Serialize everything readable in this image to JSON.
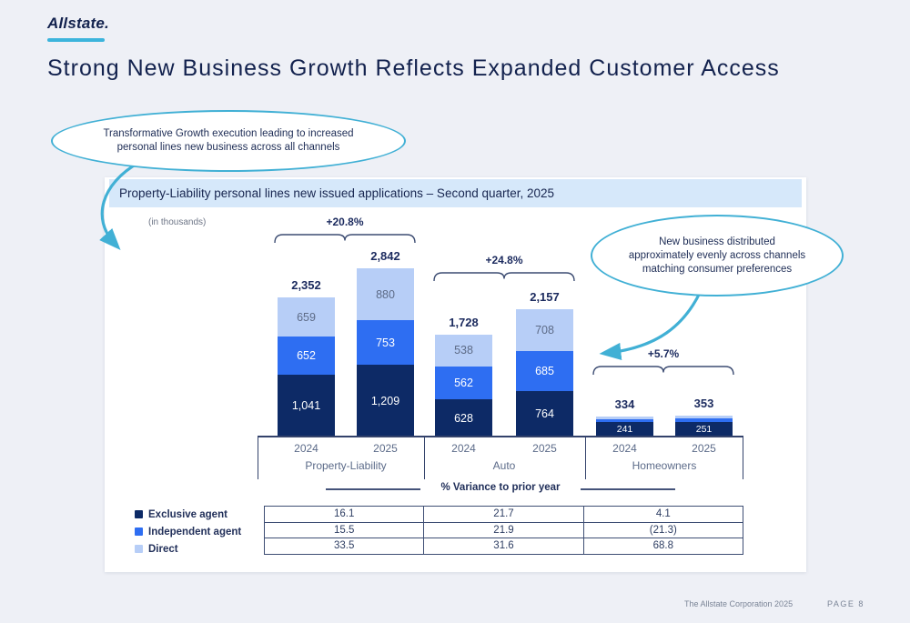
{
  "logo": {
    "text": "Allstate.",
    "underline_color": "#3cb4dc"
  },
  "title": "Strong New Business Growth Reflects Expanded Customer Access",
  "callout_left": {
    "lines": [
      "Transformative Growth execution leading to increased",
      "personal lines new business across all channels"
    ]
  },
  "callout_right": {
    "lines": [
      "New business distributed",
      "approximately evenly across channels",
      "matching consumer preferences"
    ]
  },
  "panel": {
    "header": "Property-Liability personal lines new issued applications – Second quarter, 2025",
    "units_note": "(in thousands)"
  },
  "chart_data": {
    "type": "bar",
    "stacked": true,
    "units": "thousands",
    "ylabel": "New issued applications (in thousands)",
    "colors": {
      "Exclusive agent": "#0d2a66",
      "Independent agent": "#2e6ef2",
      "Direct": "#b7cef7"
    },
    "groups": [
      {
        "name": "Property-Liability",
        "growth": "+20.8%",
        "bars": [
          {
            "year": "2024",
            "total": 2352,
            "total_label": "2,352",
            "segments": [
              {
                "channel": "Exclusive agent",
                "value": 1041,
                "label": "1,041"
              },
              {
                "channel": "Independent agent",
                "value": 652,
                "label": "652"
              },
              {
                "channel": "Direct",
                "value": 659,
                "label": "659"
              }
            ]
          },
          {
            "year": "2025",
            "total": 2842,
            "total_label": "2,842",
            "segments": [
              {
                "channel": "Exclusive agent",
                "value": 1209,
                "label": "1,209"
              },
              {
                "channel": "Independent agent",
                "value": 753,
                "label": "753"
              },
              {
                "channel": "Direct",
                "value": 880,
                "label": "880"
              }
            ]
          }
        ]
      },
      {
        "name": "Auto",
        "growth": "+24.8%",
        "bars": [
          {
            "year": "2024",
            "total": 1728,
            "total_label": "1,728",
            "segments": [
              {
                "channel": "Exclusive agent",
                "value": 628,
                "label": "628"
              },
              {
                "channel": "Independent agent",
                "value": 562,
                "label": "562"
              },
              {
                "channel": "Direct",
                "value": 538,
                "label": "538"
              }
            ]
          },
          {
            "year": "2025",
            "total": 2157,
            "total_label": "2,157",
            "segments": [
              {
                "channel": "Exclusive agent",
                "value": 764,
                "label": "764"
              },
              {
                "channel": "Independent agent",
                "value": 685,
                "label": "685"
              },
              {
                "channel": "Direct",
                "value": 708,
                "label": "708"
              }
            ]
          }
        ]
      },
      {
        "name": "Homeowners",
        "growth": "+5.7%",
        "bars": [
          {
            "year": "2024",
            "total": 334,
            "total_label": "334",
            "segments": [
              {
                "channel": "Exclusive agent",
                "value": 241,
                "label": "241"
              },
              {
                "channel": "Independent agent",
                "value": null,
                "label": ""
              },
              {
                "channel": "Direct",
                "value": null,
                "label": ""
              }
            ]
          },
          {
            "year": "2025",
            "total": 353,
            "total_label": "353",
            "segments": [
              {
                "channel": "Exclusive agent",
                "value": 251,
                "label": "251"
              },
              {
                "channel": "Independent agent",
                "value": null,
                "label": ""
              },
              {
                "channel": "Direct",
                "value": null,
                "label": ""
              }
            ]
          }
        ]
      }
    ]
  },
  "legend": [
    {
      "label": "Exclusive agent",
      "color": "#0d2a66"
    },
    {
      "label": "Independent agent",
      "color": "#2e6ef2"
    },
    {
      "label": "Direct",
      "color": "#b7cef7"
    }
  ],
  "variance_table": {
    "title": "% Variance to prior year",
    "columns": [
      "Property-Liability",
      "Auto",
      "Homeowners"
    ],
    "rows": [
      {
        "label": "Exclusive agent",
        "values": [
          "16.1",
          "21.7",
          "4.1"
        ]
      },
      {
        "label": "Independent agent",
        "values": [
          "15.5",
          "21.9",
          "(21.3)"
        ]
      },
      {
        "label": "Direct",
        "values": [
          "33.5",
          "31.6",
          "68.8"
        ]
      }
    ]
  },
  "footer": {
    "company": "The Allstate Corporation 2025",
    "page": "PAGE 8"
  }
}
